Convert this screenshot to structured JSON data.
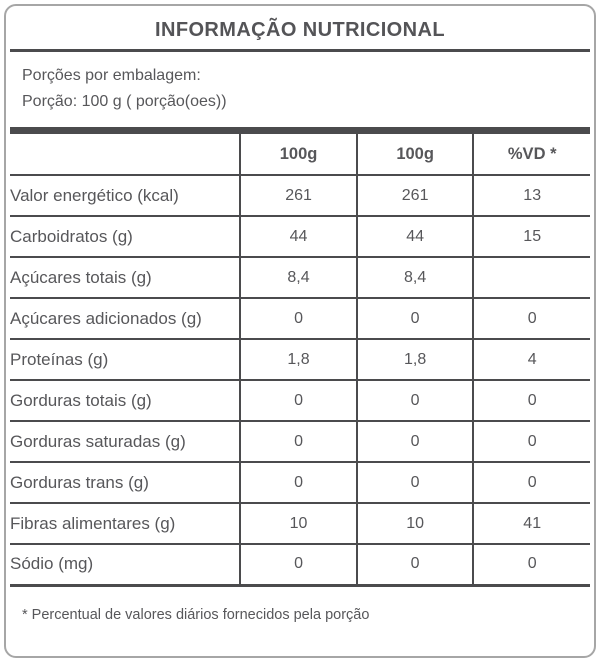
{
  "label": {
    "title": "INFORMAÇÃO NUTRICIONAL",
    "servings": {
      "line1": "Porções por embalagem:",
      "line2": "Porção: 100 g ( porção(oes))"
    },
    "footnote": "* Percentual de valores diários fornecidos pela porção"
  },
  "table": {
    "headers": [
      "",
      "100g",
      "100g",
      "%VD *"
    ],
    "rows": [
      {
        "label": "Valor energético (kcal)",
        "indent": 0,
        "values": [
          "261",
          "261",
          "13"
        ]
      },
      {
        "label": "Carboidratos (g)",
        "indent": 0,
        "values": [
          "44",
          "44",
          "15"
        ]
      },
      {
        "label": "Açúcares totais (g)",
        "indent": 1,
        "values": [
          "8,4",
          "8,4",
          ""
        ]
      },
      {
        "label": "Açúcares adicionados (g)",
        "indent": 2,
        "values": [
          "0",
          "0",
          "0"
        ]
      },
      {
        "label": "Proteínas (g)",
        "indent": 0,
        "values": [
          "1,8",
          "1,8",
          "4"
        ]
      },
      {
        "label": "Gorduras totais (g)",
        "indent": 0,
        "values": [
          "0",
          "0",
          "0"
        ]
      },
      {
        "label": "Gorduras saturadas (g)",
        "indent": 1,
        "values": [
          "0",
          "0",
          "0"
        ]
      },
      {
        "label": "Gorduras trans (g)",
        "indent": 1,
        "values": [
          "0",
          "0",
          "0"
        ]
      },
      {
        "label": "Fibras alimentares (g)",
        "indent": 0,
        "values": [
          "10",
          "10",
          "41"
        ]
      },
      {
        "label": "Sódio (mg)",
        "indent": 0,
        "values": [
          "0",
          "0",
          "0"
        ]
      }
    ]
  },
  "colors": {
    "rule": "#4b4b4d",
    "text": "#57575a",
    "outer_border": "#a6a6a6",
    "background": "#ffffff"
  }
}
